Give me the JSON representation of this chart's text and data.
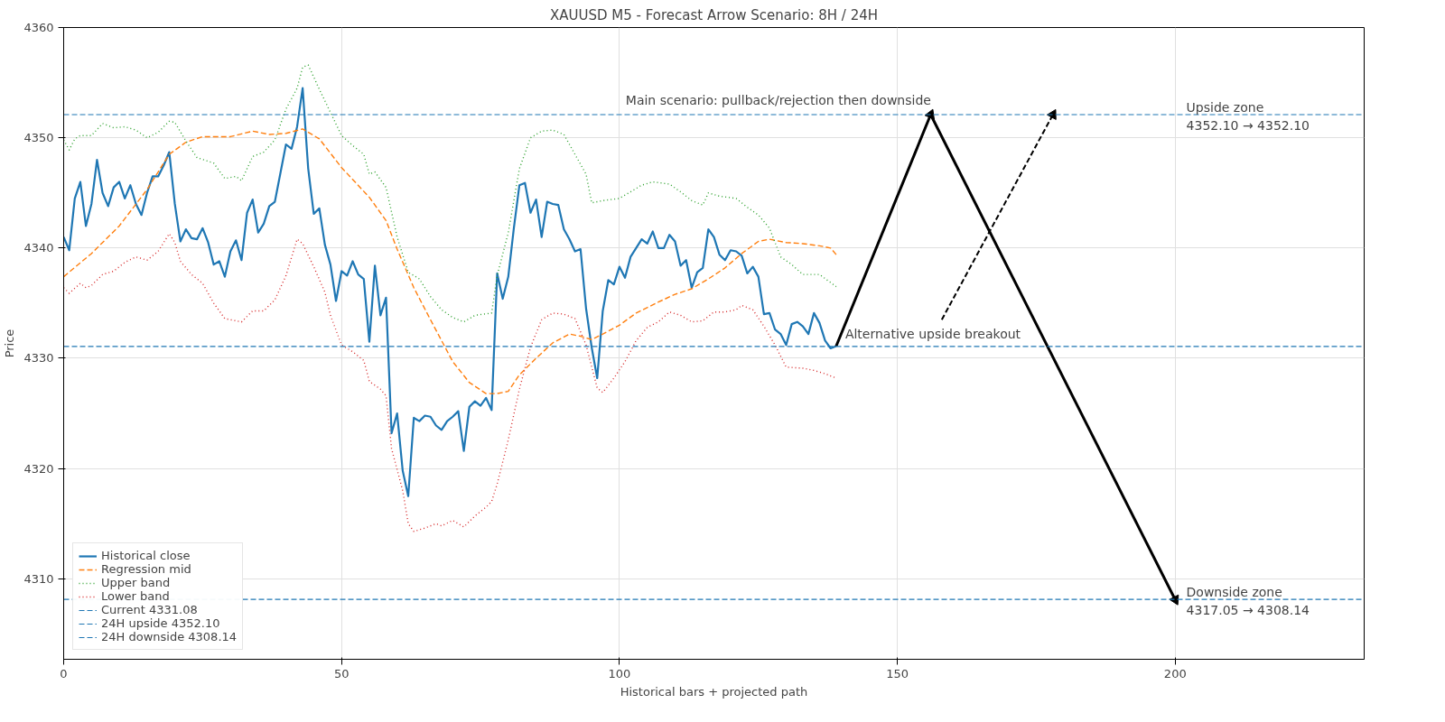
{
  "chart_data": {
    "type": "line",
    "title": "XAUUSD M5 - Forecast Arrow Scenario: 8H / 24H",
    "xlabel": "Historical bars + projected path",
    "ylabel": "Price",
    "xlim": [
      0,
      234
    ],
    "ylim": [
      4302.7,
      4360
    ],
    "xticks": [
      0,
      50,
      100,
      150,
      200
    ],
    "yticks": [
      4310,
      4320,
      4330,
      4340,
      4350,
      4360
    ],
    "grid": true,
    "legend": "bottom left",
    "marker": "none",
    "series": [
      {
        "name": "Historical close",
        "color": "#1f77b4",
        "line_style": "solid",
        "x": [
          0,
          1,
          2,
          3,
          4,
          5,
          6,
          7,
          8,
          9,
          10,
          11,
          12,
          13,
          14,
          15,
          16,
          17,
          18,
          19,
          20,
          21,
          22,
          23,
          24,
          25,
          26,
          27,
          28,
          29,
          30,
          31,
          32,
          33,
          34,
          35,
          36,
          37,
          38,
          39,
          40,
          41,
          42,
          43,
          44,
          45,
          46,
          47,
          48,
          49,
          50,
          51,
          52,
          53,
          54,
          55,
          56,
          57,
          58,
          59,
          60,
          61,
          62,
          63,
          64,
          65,
          66,
          67,
          68,
          69,
          70,
          71,
          72,
          73,
          74,
          75,
          76,
          77,
          78,
          79,
          80,
          81,
          82,
          83,
          84,
          85,
          86,
          87,
          88,
          89,
          90,
          91,
          92,
          93,
          94,
          95,
          96,
          97,
          98,
          99,
          100,
          101,
          102,
          103,
          104,
          105,
          106,
          107,
          108,
          109,
          110,
          111,
          112,
          113,
          114,
          115,
          116,
          117,
          118,
          119,
          120,
          121,
          122,
          123,
          124,
          125,
          126,
          127,
          128,
          129,
          130,
          131,
          132,
          133,
          134,
          135,
          136,
          137,
          138,
          139
        ],
        "values": [
          4341,
          4339.8,
          4344.5,
          4346,
          4342,
          4344,
          4348,
          4345,
          4343.8,
          4345.5,
          4346,
          4344.5,
          4345.7,
          4344,
          4343,
          4345,
          4346.5,
          4346.5,
          4347.5,
          4348.7,
          4344,
          4340.6,
          4341.7,
          4340.9,
          4340.8,
          4341.8,
          4340.5,
          4338.5,
          4338.8,
          4337.4,
          4339.7,
          4340.7,
          4338.9,
          4343.2,
          4344.4,
          4341.4,
          4342.2,
          4343.8,
          4344.2,
          4346.8,
          4349.4,
          4349,
          4351,
          4354.5,
          4347.2,
          4343.1,
          4343.6,
          4340.3,
          4338.5,
          4335.2,
          4337.9,
          4337.5,
          4338.8,
          4337.6,
          4337.2,
          4331.5,
          4338.4,
          4333.9,
          4335.5,
          4323.2,
          4325,
          4319.8,
          4317.5,
          4324.6,
          4324.3,
          4324.8,
          4324.7,
          4323.9,
          4323.5,
          4324.3,
          4324.7,
          4325.2,
          4321.6,
          4325.6,
          4326.1,
          4325.7,
          4326.4,
          4325.3,
          4337.7,
          4335.4,
          4337.4,
          4341.8,
          4345.7,
          4345.9,
          4343.2,
          4344.4,
          4341,
          4344.2,
          4344,
          4343.9,
          4341.7,
          4340.8,
          4339.7,
          4339.9,
          4334.5,
          4331,
          4328.2,
          4334.3,
          4337.1,
          4336.7,
          4338.3,
          4337.3,
          4339.2,
          4340,
          4340.8,
          4340.4,
          4341.5,
          4340,
          4340,
          4341.2,
          4340.6,
          4338.4,
          4338.9,
          4336.4,
          4337.8,
          4338.2,
          4341.7,
          4341,
          4339.4,
          4338.9,
          4339.8,
          4339.7,
          4339.3,
          4337.7,
          4338.3,
          4337.4,
          4334,
          4334.1,
          4332.6,
          4332.2,
          4331.2,
          4333.1,
          4333.3,
          4332.9,
          4332.2,
          4334.1,
          4333.2,
          4331.6,
          4330.9,
          4331.1
        ]
      },
      {
        "name": "Regression mid",
        "color": "#ff7f0e",
        "line_style": "dashed",
        "x": [
          0,
          5,
          10,
          15,
          19,
          22,
          25,
          30,
          34,
          37,
          40,
          43,
          46,
          50,
          55,
          58,
          60,
          63,
          66,
          70,
          73,
          76,
          78,
          80,
          82,
          85,
          88,
          91,
          93,
          95,
          97,
          100,
          103,
          107,
          110,
          113,
          116,
          119,
          122,
          125,
          127,
          130,
          133,
          136,
          138,
          139
        ],
        "values": [
          4337.4,
          4339.5,
          4342,
          4345.3,
          4348.5,
          4349.6,
          4350.1,
          4350.1,
          4350.6,
          4350.3,
          4350.4,
          4350.8,
          4349.9,
          4347.3,
          4344.6,
          4342.5,
          4339.9,
          4336.4,
          4333.5,
          4329.7,
          4327.8,
          4326.8,
          4326.8,
          4327,
          4328.5,
          4330,
          4331.4,
          4332.2,
          4332,
          4331.7,
          4332.2,
          4333,
          4334.1,
          4335.1,
          4335.8,
          4336.3,
          4337.2,
          4338.2,
          4339.5,
          4340.6,
          4340.8,
          4340.5,
          4340.4,
          4340.2,
          4340,
          4339.4
        ]
      },
      {
        "name": "Upper band",
        "color": "#2ca02c",
        "line_style": "dotted",
        "x": [
          0,
          1,
          2,
          3,
          5,
          7,
          9,
          11,
          13,
          15,
          17,
          19,
          20,
          22,
          24,
          27,
          29,
          31,
          32,
          34,
          36,
          38,
          40,
          42,
          43,
          44,
          46,
          48,
          50,
          52,
          54,
          55,
          56,
          58,
          60,
          62,
          64,
          66,
          68,
          70,
          72,
          74,
          77,
          78,
          80,
          82,
          84,
          86,
          88,
          90,
          92,
          94,
          95,
          97,
          100,
          102,
          104,
          106,
          109,
          111,
          113,
          115,
          116,
          118,
          121,
          123,
          125,
          127,
          129,
          131,
          133,
          136,
          139
        ],
        "values": [
          4349.8,
          4348.9,
          4349.9,
          4350.2,
          4350.2,
          4351.3,
          4350.9,
          4351,
          4350.7,
          4350,
          4350.5,
          4351.5,
          4351.4,
          4349.7,
          4348.2,
          4347.7,
          4346.3,
          4346.5,
          4346.1,
          4348.3,
          4348.7,
          4349.8,
          4352.6,
          4354.5,
          4356.4,
          4356.6,
          4354.4,
          4352.3,
          4350.2,
          4349.3,
          4348.5,
          4346.7,
          4346.9,
          4345.5,
          4341,
          4337.8,
          4337.2,
          4335.6,
          4334.4,
          4333.7,
          4333.3,
          4333.9,
          4334.1,
          4337.5,
          4341.4,
          4347.2,
          4350,
          4350.6,
          4350.7,
          4350.3,
          4348.5,
          4346.7,
          4344.1,
          4344.3,
          4344.5,
          4345.1,
          4345.7,
          4346,
          4345.8,
          4345.1,
          4344.3,
          4343.9,
          4345,
          4344.7,
          4344.5,
          4343.7,
          4343,
          4341.8,
          4339.2,
          4338.5,
          4337.6,
          4337.6,
          4336.5
        ]
      },
      {
        "name": "Lower band",
        "color": "#d62728",
        "line_style": "dotted",
        "x": [
          0,
          1,
          3,
          4,
          5,
          7,
          9,
          11,
          13,
          15,
          17,
          19,
          20,
          21,
          23,
          25,
          27,
          29,
          31,
          32,
          34,
          36,
          38,
          40,
          42,
          43,
          45,
          47,
          48,
          50,
          52,
          54,
          55,
          57,
          58,
          59,
          61,
          62,
          63,
          65,
          67,
          68,
          70,
          72,
          74,
          76,
          77,
          78,
          80,
          82,
          84,
          86,
          88,
          90,
          92,
          94,
          96,
          97,
          99,
          101,
          103,
          105,
          107,
          109,
          111,
          113,
          115,
          117,
          119,
          121,
          122,
          124,
          126,
          128,
          130,
          133,
          135,
          137,
          139
        ],
        "values": [
          4336.4,
          4335.9,
          4336.8,
          4336.4,
          4336.6,
          4337.6,
          4337.9,
          4338.7,
          4339.2,
          4338.9,
          4339.7,
          4341.3,
          4340.5,
          4338.8,
          4337.6,
          4336.8,
          4335,
          4333.6,
          4333.4,
          4333.3,
          4334.3,
          4334.3,
          4335.3,
          4337.5,
          4340.8,
          4340.4,
          4338.3,
          4336,
          4333.9,
          4331.2,
          4330.6,
          4329.8,
          4327.9,
          4327.2,
          4326.6,
          4321.8,
          4318,
          4315,
          4314.3,
          4314.6,
          4315,
          4314.8,
          4315.3,
          4314.7,
          4315.7,
          4316.5,
          4317,
          4318.6,
          4322.6,
          4327.2,
          4331,
          4333.5,
          4334.1,
          4334,
          4333.6,
          4331.2,
          4327.3,
          4326.9,
          4328.2,
          4329.7,
          4331.6,
          4332.8,
          4333.3,
          4334.2,
          4333.9,
          4333.3,
          4333.4,
          4334.2,
          4334.2,
          4334.4,
          4334.8,
          4334.4,
          4332.9,
          4331.2,
          4329.2,
          4329.1,
          4328.9,
          4328.6,
          4328.2
        ]
      },
      {
        "color": "#000000",
        "line_style": "solid",
        "marker": "triangle",
        "x": [
          139,
          156,
          200
        ],
        "values": [
          4331.1,
          4352.1,
          4308.1
        ]
      },
      {
        "color": "#000000",
        "line_style": "dashed",
        "marker": "triangle",
        "x": [
          158,
          178
        ],
        "values": [
          4333.5,
          4352.1
        ]
      }
    ],
    "ref_lines": [
      {
        "axis": "y",
        "value": 4331.08,
        "label": "Current 4331.08",
        "color": "#1f77b4",
        "line_style": "dashed"
      },
      {
        "axis": "y",
        "value": 4352.1,
        "label": "24H upside 4352.10",
        "color": "#1f77b4",
        "line_style": "dashed"
      },
      {
        "axis": "y",
        "value": 4308.14,
        "label": "24H downside 4308.14",
        "color": "#1f77b4",
        "line_style": "dashed"
      }
    ],
    "annotations": [
      {
        "text": "Main scenario: pullback/rejection then downside",
        "x": 99.5,
        "y": 4352.3
      },
      {
        "text": "Alternative upside breakout",
        "x": 139,
        "y": 4331.08
      },
      {
        "text": "Upside zone\n4352.10 → 4352.10",
        "x": 202,
        "y": 4352.1
      },
      {
        "text": "Downside zone\n4317.05 → 4308.14",
        "x": 202,
        "y": 4308.14
      }
    ]
  }
}
